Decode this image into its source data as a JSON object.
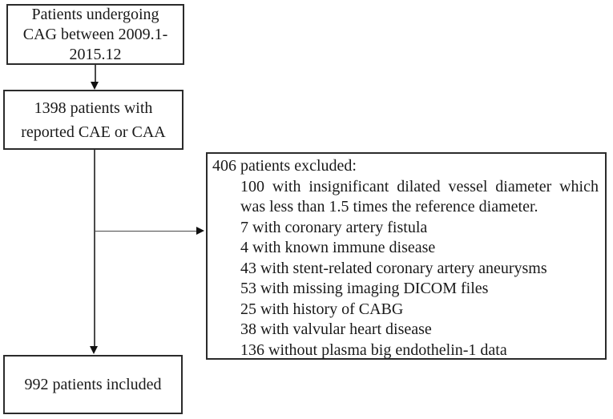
{
  "flow": {
    "start": {
      "lines": [
        "Patients undergoing",
        "CAG between 2009.1-",
        "2015.12"
      ]
    },
    "reported": {
      "lines": [
        "1398 patients with",
        "reported CAE or CAA"
      ]
    },
    "excluded": {
      "header": "406 patients excluded:",
      "items": [
        "100 with insignificant dilated vessel diameter which was less than 1.5 times the reference diameter.",
        "7 with coronary artery fistula",
        "4 with known immune disease",
        "43 with stent-related coronary artery aneurysms",
        "53 with missing imaging DICOM files",
        "25 with history of CABG",
        "38 with valvular heart disease",
        "136 without plasma big endothelin-1 data"
      ]
    },
    "included": {
      "lines": [
        "992 patients included"
      ]
    }
  },
  "colors": {
    "background": "#ffffff",
    "box_border": "#2b2b2b",
    "connector_line": "#4a4a4a",
    "text": "#1a1a1a"
  }
}
